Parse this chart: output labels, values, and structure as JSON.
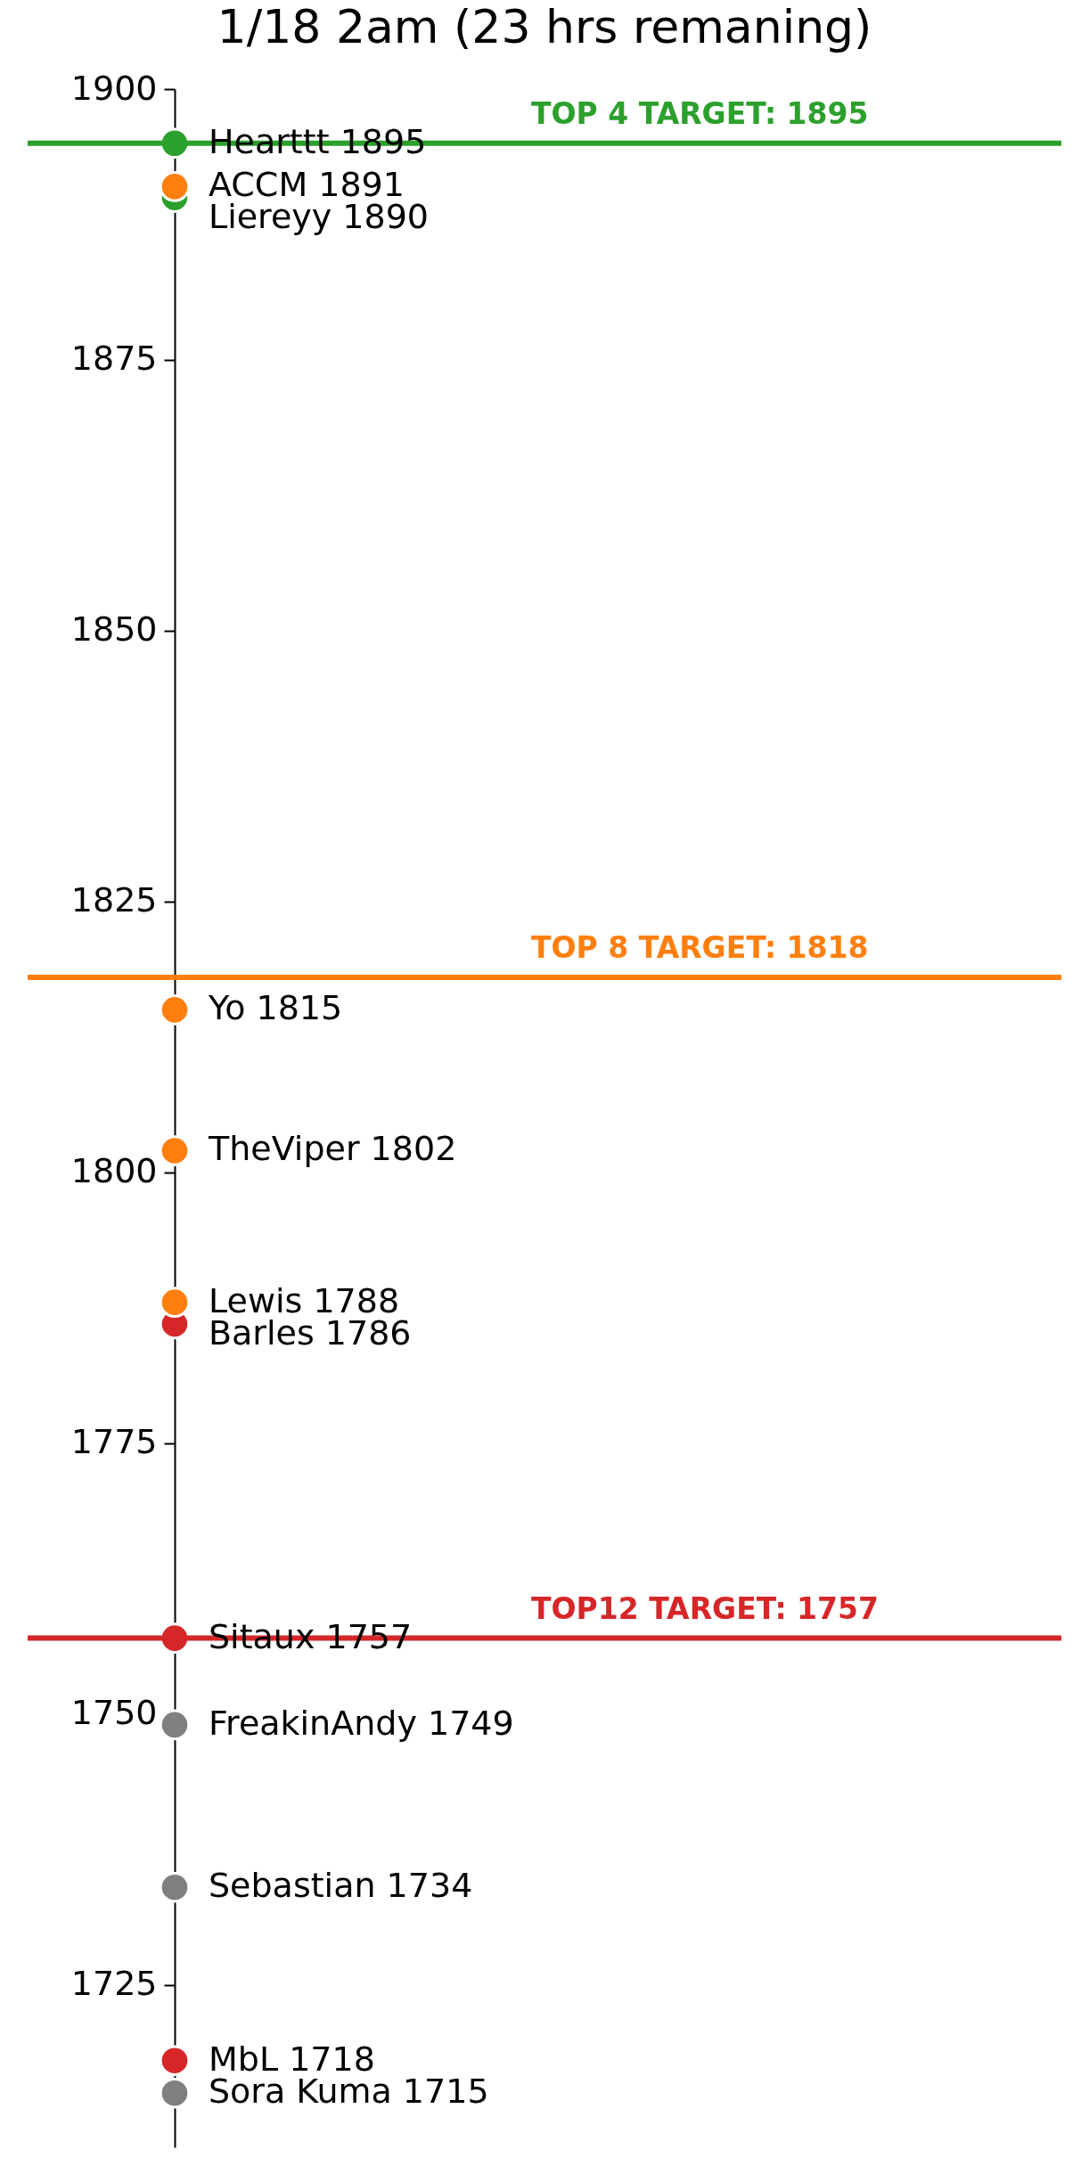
{
  "chart_data": {
    "type": "scatter",
    "title": "1/18 2am (23 hrs remaning)",
    "categories": [
      null
    ],
    "series": [
      {
        "color": "#2ca02c",
        "values": [
          1895
        ],
        "value_labels": [
          "Hearttt 1895"
        ]
      },
      {
        "color": "#ff7f0e",
        "values": [
          1891
        ],
        "value_labels": [
          "ACCM 1891"
        ]
      },
      {
        "color": "#2ca02c",
        "values": [
          1890
        ],
        "value_labels": [
          "Liereyy 1890"
        ]
      },
      {
        "color": "#ff7f0e",
        "values": [
          1815
        ],
        "value_labels": [
          "Yo 1815"
        ]
      },
      {
        "color": "#ff7f0e",
        "values": [
          1802
        ],
        "value_labels": [
          "TheViper 1802"
        ]
      },
      {
        "color": "#ff7f0e",
        "values": [
          1788
        ],
        "value_labels": [
          "Lewis 1788"
        ]
      },
      {
        "color": "#d62728",
        "values": [
          1786
        ],
        "value_labels": [
          "Barles 1786"
        ]
      },
      {
        "color": "#d62728",
        "values": [
          1757
        ],
        "value_labels": [
          "Sitaux 1757"
        ]
      },
      {
        "color": "#7f7f7f",
        "values": [
          1749
        ],
        "value_labels": [
          "FreakinAndy 1749"
        ]
      },
      {
        "color": "#7f7f7f",
        "values": [
          1734
        ],
        "value_labels": [
          "Sebastian 1734"
        ]
      },
      {
        "color": "#d62728",
        "values": [
          1718
        ],
        "value_labels": [
          "MbL 1718"
        ]
      },
      {
        "color": "#7f7f7f",
        "values": [
          1715
        ],
        "value_labels": [
          "Sora Kuma 1715"
        ]
      }
    ],
    "marker": "circle",
    "ylim": [
      1710,
      1900
    ],
    "yticks": [
      1725,
      1750,
      1775,
      1800,
      1825,
      1850,
      1875,
      1900
    ],
    "tick_labels": "y",
    "ref_lines": [
      {
        "axis": "y",
        "value": 1895,
        "label": "TOP 4 TARGET: 1895",
        "color": "#2ca02c"
      },
      {
        "axis": "y",
        "value": 1818,
        "label": "TOP 8 TARGET: 1818",
        "color": "#ff7f0e"
      },
      {
        "axis": "y",
        "value": 1757,
        "label": "TOP12 TARGET: 1757",
        "color": "#d62728"
      }
    ]
  }
}
